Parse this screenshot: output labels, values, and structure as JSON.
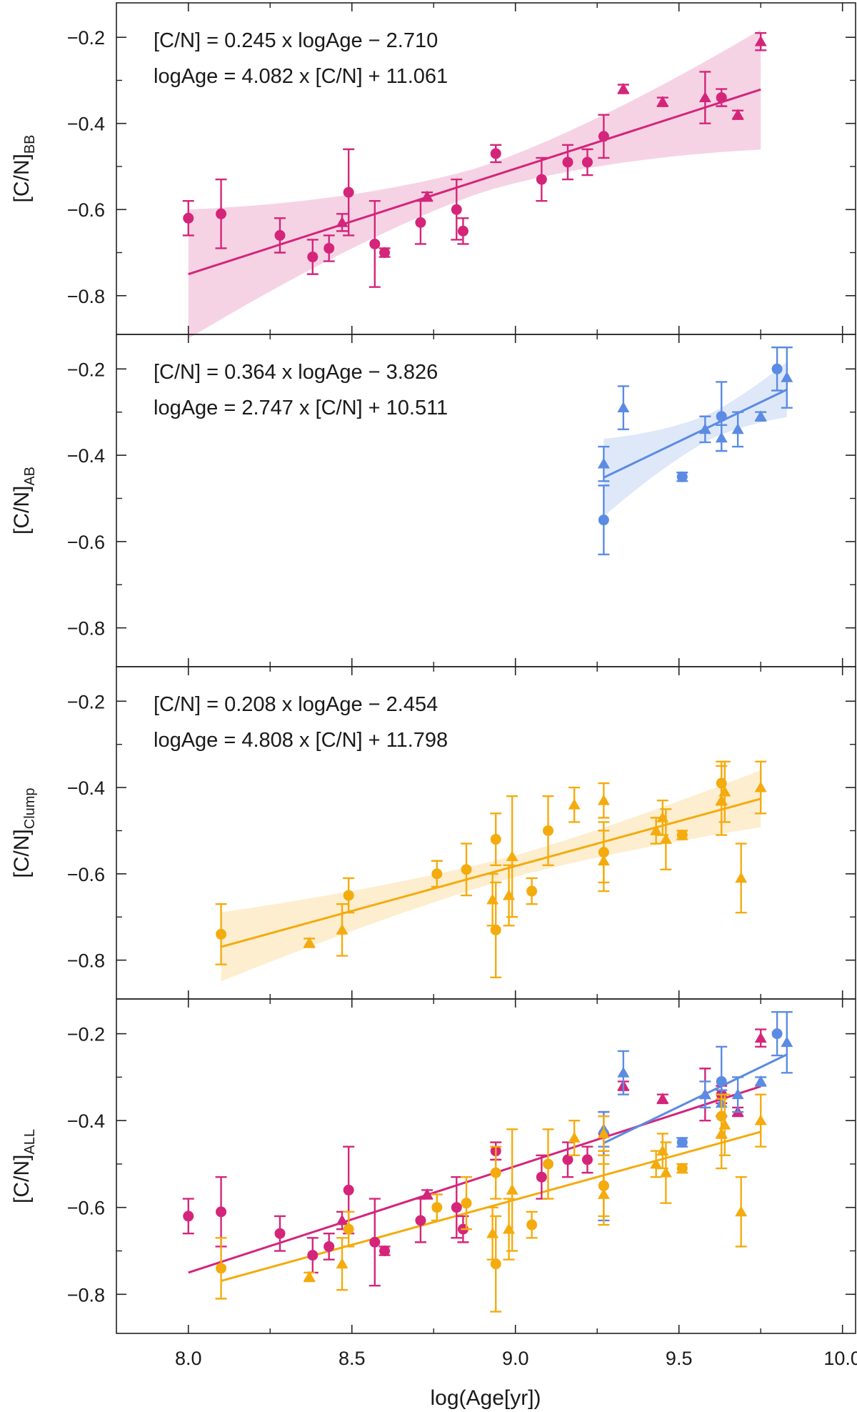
{
  "figure": {
    "xlabel": "log(Age[yr])",
    "x_ticks": [
      "8.0",
      "8.5",
      "9.0",
      "9.5",
      "10.0"
    ],
    "y_ticks": [
      "−0.2",
      "−0.4",
      "−0.6",
      "−0.8"
    ]
  },
  "chart_data": [
    {
      "type": "scatter",
      "panel": "BB",
      "ylabel_main": "[C/N]",
      "ylabel_sub": "BB",
      "equation_1": "[C/N] = 0.245 x logAge − 2.710",
      "equation_2": "logAge = 4.082 x [C/N] + 11.061",
      "xlim": [
        7.78,
        10.04
      ],
      "ylim": [
        -0.89,
        -0.12
      ],
      "series": [
        {
          "name": "BB circles",
          "color": "#d4257a",
          "marker": "circle",
          "points": [
            [
              8.0,
              -0.62,
              0.04
            ],
            [
              8.1,
              -0.61,
              0.08
            ],
            [
              8.28,
              -0.66,
              0.04
            ],
            [
              8.38,
              -0.71,
              0.04
            ],
            [
              8.43,
              -0.69,
              0.03
            ],
            [
              8.49,
              -0.56,
              0.1
            ],
            [
              8.57,
              -0.68,
              0.1
            ],
            [
              8.6,
              -0.7,
              0.01
            ],
            [
              8.71,
              -0.63,
              0.05
            ],
            [
              8.82,
              -0.6,
              0.07
            ],
            [
              8.84,
              -0.65,
              0.03
            ],
            [
              8.94,
              -0.47,
              0.02
            ],
            [
              9.08,
              -0.53,
              0.05
            ],
            [
              9.16,
              -0.49,
              0.04
            ],
            [
              9.22,
              -0.49,
              0.03
            ],
            [
              9.27,
              -0.43,
              0.05
            ],
            [
              9.63,
              -0.34,
              0.02
            ]
          ]
        },
        {
          "name": "BB triangles",
          "color": "#d4257a",
          "marker": "triangle",
          "points": [
            [
              8.47,
              -0.63,
              0.02
            ],
            [
              8.73,
              -0.57,
              0.01
            ],
            [
              9.33,
              -0.32,
              0.01
            ],
            [
              9.45,
              -0.35,
              0.01
            ],
            [
              9.58,
              -0.34,
              0.06
            ],
            [
              9.68,
              -0.38,
              0.01
            ],
            [
              9.75,
              -0.21,
              0.02
            ]
          ]
        }
      ],
      "fits": [
        {
          "color": "#d4257a",
          "x_range": [
            8.0,
            9.75
          ],
          "slope": 0.245,
          "intercept": -2.71,
          "band_center": 8.9,
          "band_halfwidth": [
            0.03,
            0.15
          ]
        }
      ]
    },
    {
      "type": "scatter",
      "panel": "AB",
      "ylabel_main": "[C/N]",
      "ylabel_sub": "AB",
      "equation_1": "[C/N] = 0.364 x logAge − 3.826",
      "equation_2": "logAge = 2.747 x [C/N] + 10.511",
      "xlim": [
        7.78,
        10.04
      ],
      "ylim": [
        -0.89,
        -0.12
      ],
      "series": [
        {
          "name": "AB circles",
          "color": "#5b8be3",
          "marker": "circle",
          "points": [
            [
              9.27,
              -0.55,
              0.08
            ],
            [
              9.51,
              -0.45,
              0.01
            ],
            [
              9.63,
              -0.31,
              0.08
            ],
            [
              9.8,
              -0.2,
              0.05
            ]
          ]
        },
        {
          "name": "AB triangles",
          "color": "#5b8be3",
          "marker": "triangle",
          "points": [
            [
              9.27,
              -0.42,
              0.04
            ],
            [
              9.33,
              -0.29,
              0.05
            ],
            [
              9.58,
              -0.34,
              0.03
            ],
            [
              9.63,
              -0.36,
              0.03
            ],
            [
              9.68,
              -0.34,
              0.04
            ],
            [
              9.75,
              -0.31,
              0.01
            ],
            [
              9.83,
              -0.22,
              0.07
            ]
          ]
        }
      ],
      "fits": [
        {
          "color": "#5b8be3",
          "x_range": [
            9.27,
            9.83
          ],
          "slope": 0.364,
          "intercept": -3.826,
          "band_center": 9.6,
          "band_halfwidth": [
            0.03,
            0.09
          ]
        }
      ]
    },
    {
      "type": "scatter",
      "panel": "Clump",
      "ylabel_main": "[C/N]",
      "ylabel_sub": "Clump",
      "equation_1": "[C/N] = 0.208 x logAge − 2.454",
      "equation_2": "logAge = 4.808 x [C/N] + 11.798",
      "xlim": [
        7.78,
        10.04
      ],
      "ylim": [
        -0.89,
        -0.12
      ],
      "series": [
        {
          "name": "Clump circles",
          "color": "#f4ab0e",
          "marker": "circle",
          "points": [
            [
              8.1,
              -0.74,
              0.07
            ],
            [
              8.49,
              -0.65,
              0.04
            ],
            [
              8.76,
              -0.6,
              0.03
            ],
            [
              8.85,
              -0.59,
              0.06
            ],
            [
              8.94,
              -0.52,
              0.06
            ],
            [
              8.94,
              -0.73,
              0.11
            ],
            [
              9.05,
              -0.64,
              0.03
            ],
            [
              9.1,
              -0.5,
              0.08
            ],
            [
              9.27,
              -0.55,
              0.07
            ],
            [
              9.51,
              -0.51,
              0.01
            ],
            [
              9.63,
              -0.39,
              0.05
            ]
          ]
        },
        {
          "name": "Clump triangles",
          "color": "#f4ab0e",
          "marker": "triangle",
          "points": [
            [
              8.37,
              -0.76,
              0.01
            ],
            [
              8.47,
              -0.73,
              0.06
            ],
            [
              8.93,
              -0.66,
              0.06
            ],
            [
              8.98,
              -0.65,
              0.07
            ],
            [
              8.99,
              -0.56,
              0.14
            ],
            [
              9.18,
              -0.44,
              0.04
            ],
            [
              9.27,
              -0.43,
              0.04
            ],
            [
              9.27,
              -0.57,
              0.07
            ],
            [
              9.43,
              -0.5,
              0.03
            ],
            [
              9.45,
              -0.47,
              0.04
            ],
            [
              9.46,
              -0.52,
              0.07
            ],
            [
              9.63,
              -0.43,
              0.08
            ],
            [
              9.64,
              -0.41,
              0.07
            ],
            [
              9.69,
              -0.61,
              0.08
            ],
            [
              9.75,
              -0.4,
              0.06
            ]
          ]
        }
      ],
      "fits": [
        {
          "color": "#f4ab0e",
          "x_range": [
            8.1,
            9.75
          ],
          "slope": 0.208,
          "intercept": -2.454,
          "band_center": 9.0,
          "band_halfwidth": [
            0.025,
            0.08
          ]
        }
      ]
    },
    {
      "type": "scatter",
      "panel": "ALL",
      "ylabel_main": "[C/N]",
      "ylabel_sub": "ALL",
      "xlim": [
        7.78,
        10.04
      ],
      "ylim": [
        -0.89,
        -0.12
      ],
      "series_from_panels": [
        "BB",
        "AB",
        "Clump"
      ],
      "fits": [
        {
          "color": "#d4257a",
          "x_range": [
            8.0,
            9.75
          ],
          "slope": 0.245,
          "intercept": -2.71
        },
        {
          "color": "#5b8be3",
          "x_range": [
            9.27,
            9.83
          ],
          "slope": 0.364,
          "intercept": -3.826
        },
        {
          "color": "#f4ab0e",
          "x_range": [
            8.1,
            9.75
          ],
          "slope": 0.208,
          "intercept": -2.454
        }
      ]
    }
  ]
}
